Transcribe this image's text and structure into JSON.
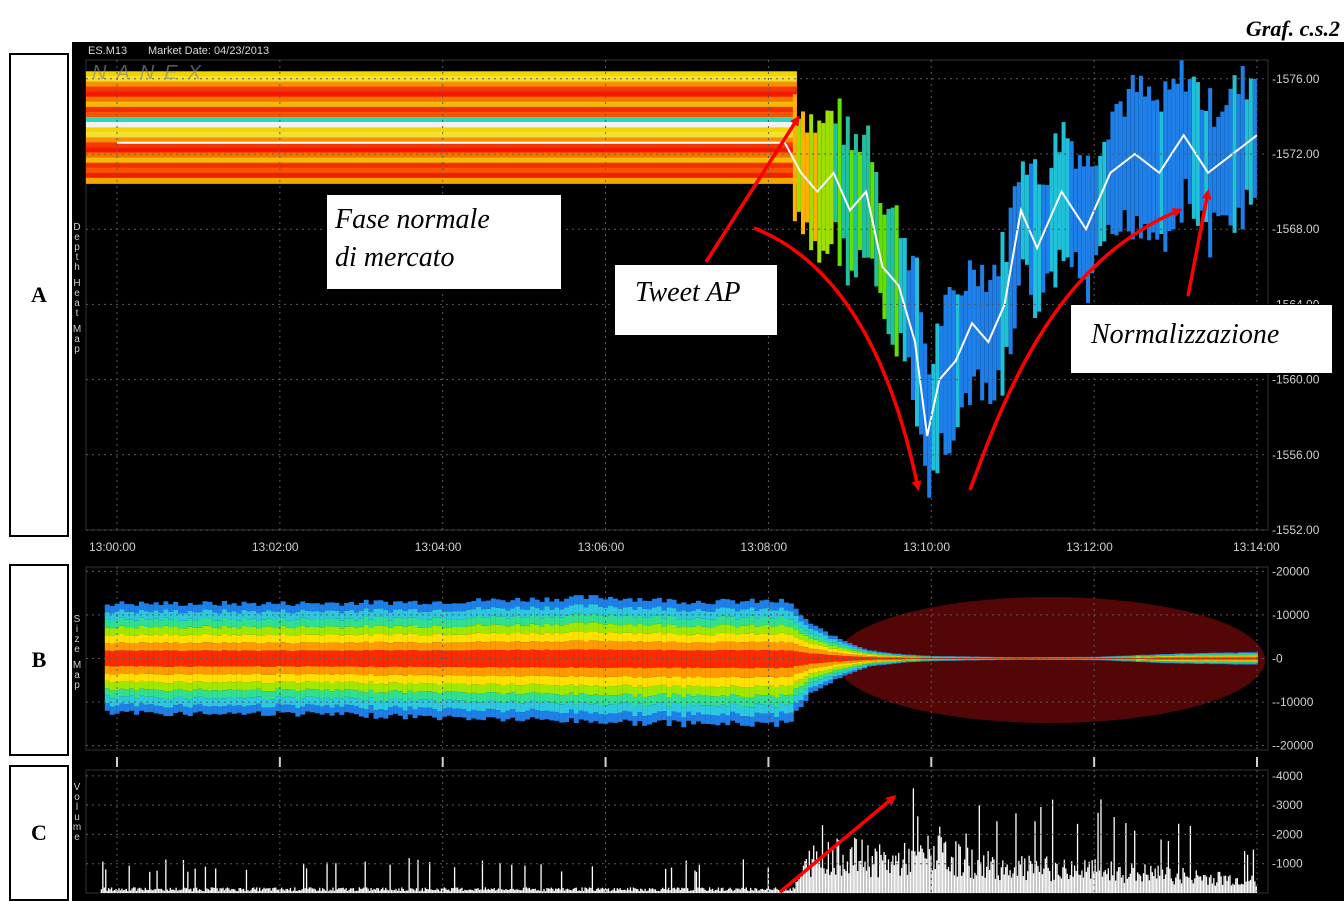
{
  "figure_id": "Graf. c.s.2",
  "header": {
    "symbol": "ES.M13",
    "market_date": "Market Date: 04/23/2013",
    "brand": "NANEX"
  },
  "panels": {
    "A": {
      "label": "A",
      "side_title": "Depth Heat Map"
    },
    "B": {
      "label": "B",
      "side_title": "Size Map"
    },
    "C": {
      "label": "C",
      "side_title": "Volume"
    }
  },
  "annotations": {
    "normal_phase": [
      "Fase normale",
      "di mercato"
    ],
    "tweet": "Tweet AP",
    "normalization": "Normalizzazione"
  },
  "colors": {
    "background": "#000000",
    "arrow": "#ff0000",
    "grid": "#5a5a5a",
    "price_line": "#ffffff"
  },
  "chart_data": [
    {
      "type": "heatmap",
      "panel": "A",
      "x_ticks": [
        "13:00:00",
        "13:02:00",
        "13:04:00",
        "13:06:00",
        "13:08:00",
        "13:10:00",
        "13:12:00",
        "13:14:00"
      ],
      "x_range_minutes": [
        0,
        14
      ],
      "y_ticks": [
        "1576.00",
        "1572.00",
        "1568.00",
        "1564.00",
        "1560.00",
        "1556.00",
        "1552.00"
      ],
      "y_range": [
        1552,
        1577
      ],
      "price_series": {
        "x_minutes": [
          0,
          8.2,
          8.4,
          8.6,
          8.8,
          9.0,
          9.2,
          9.4,
          9.6,
          9.8,
          9.95,
          10.1,
          10.3,
          10.5,
          10.7,
          10.9,
          11.1,
          11.3,
          11.6,
          11.9,
          12.2,
          12.5,
          12.8,
          13.1,
          13.4,
          13.7,
          14.0
        ],
        "y_price": [
          1572.6,
          1572.6,
          1571,
          1570,
          1571,
          1569,
          1570,
          1566,
          1565,
          1562,
          1557,
          1560,
          1561,
          1563,
          1562,
          1564,
          1569,
          1567,
          1570,
          1568,
          1571,
          1572,
          1571,
          1573,
          1571,
          1572,
          1573
        ]
      }
    },
    {
      "type": "area",
      "panel": "B",
      "y_ticks": [
        "20000",
        "10000",
        "0",
        "-10000",
        "-20000"
      ],
      "y_range": [
        -21000,
        21000
      ],
      "envelope": {
        "x_minutes": [
          0,
          2,
          4,
          6,
          7,
          8.2,
          8.5,
          8.8,
          9.2,
          9.6,
          10,
          11,
          12,
          13,
          14
        ],
        "upper": [
          13000,
          13000,
          13500,
          14500,
          13500,
          13500,
          8000,
          5000,
          2000,
          1000,
          600,
          300,
          400,
          1200,
          1500
        ],
        "lower": [
          -13000,
          -13000,
          -14000,
          -15000,
          -15500,
          -15500,
          -8000,
          -5000,
          -2000,
          -1000,
          -600,
          -300,
          -400,
          -1200,
          -1500
        ]
      }
    },
    {
      "type": "bar",
      "panel": "C",
      "y_ticks": [
        "4000",
        "3000",
        "2000",
        "1000"
      ],
      "y_range": [
        0,
        4200
      ],
      "volume_profile": {
        "x_minutes": [
          0,
          8.3,
          8.5,
          9.0,
          9.5,
          10.0,
          10.5,
          11,
          12,
          13,
          14
        ],
        "typical": [
          150,
          150,
          1300,
          1500,
          1200,
          1600,
          1200,
          1000,
          900,
          700,
          500
        ],
        "peaks": [
          1200,
          1200,
          2900,
          3400,
          3700,
          3800,
          3200,
          2900,
          4000,
          2500,
          1800
        ]
      }
    }
  ]
}
